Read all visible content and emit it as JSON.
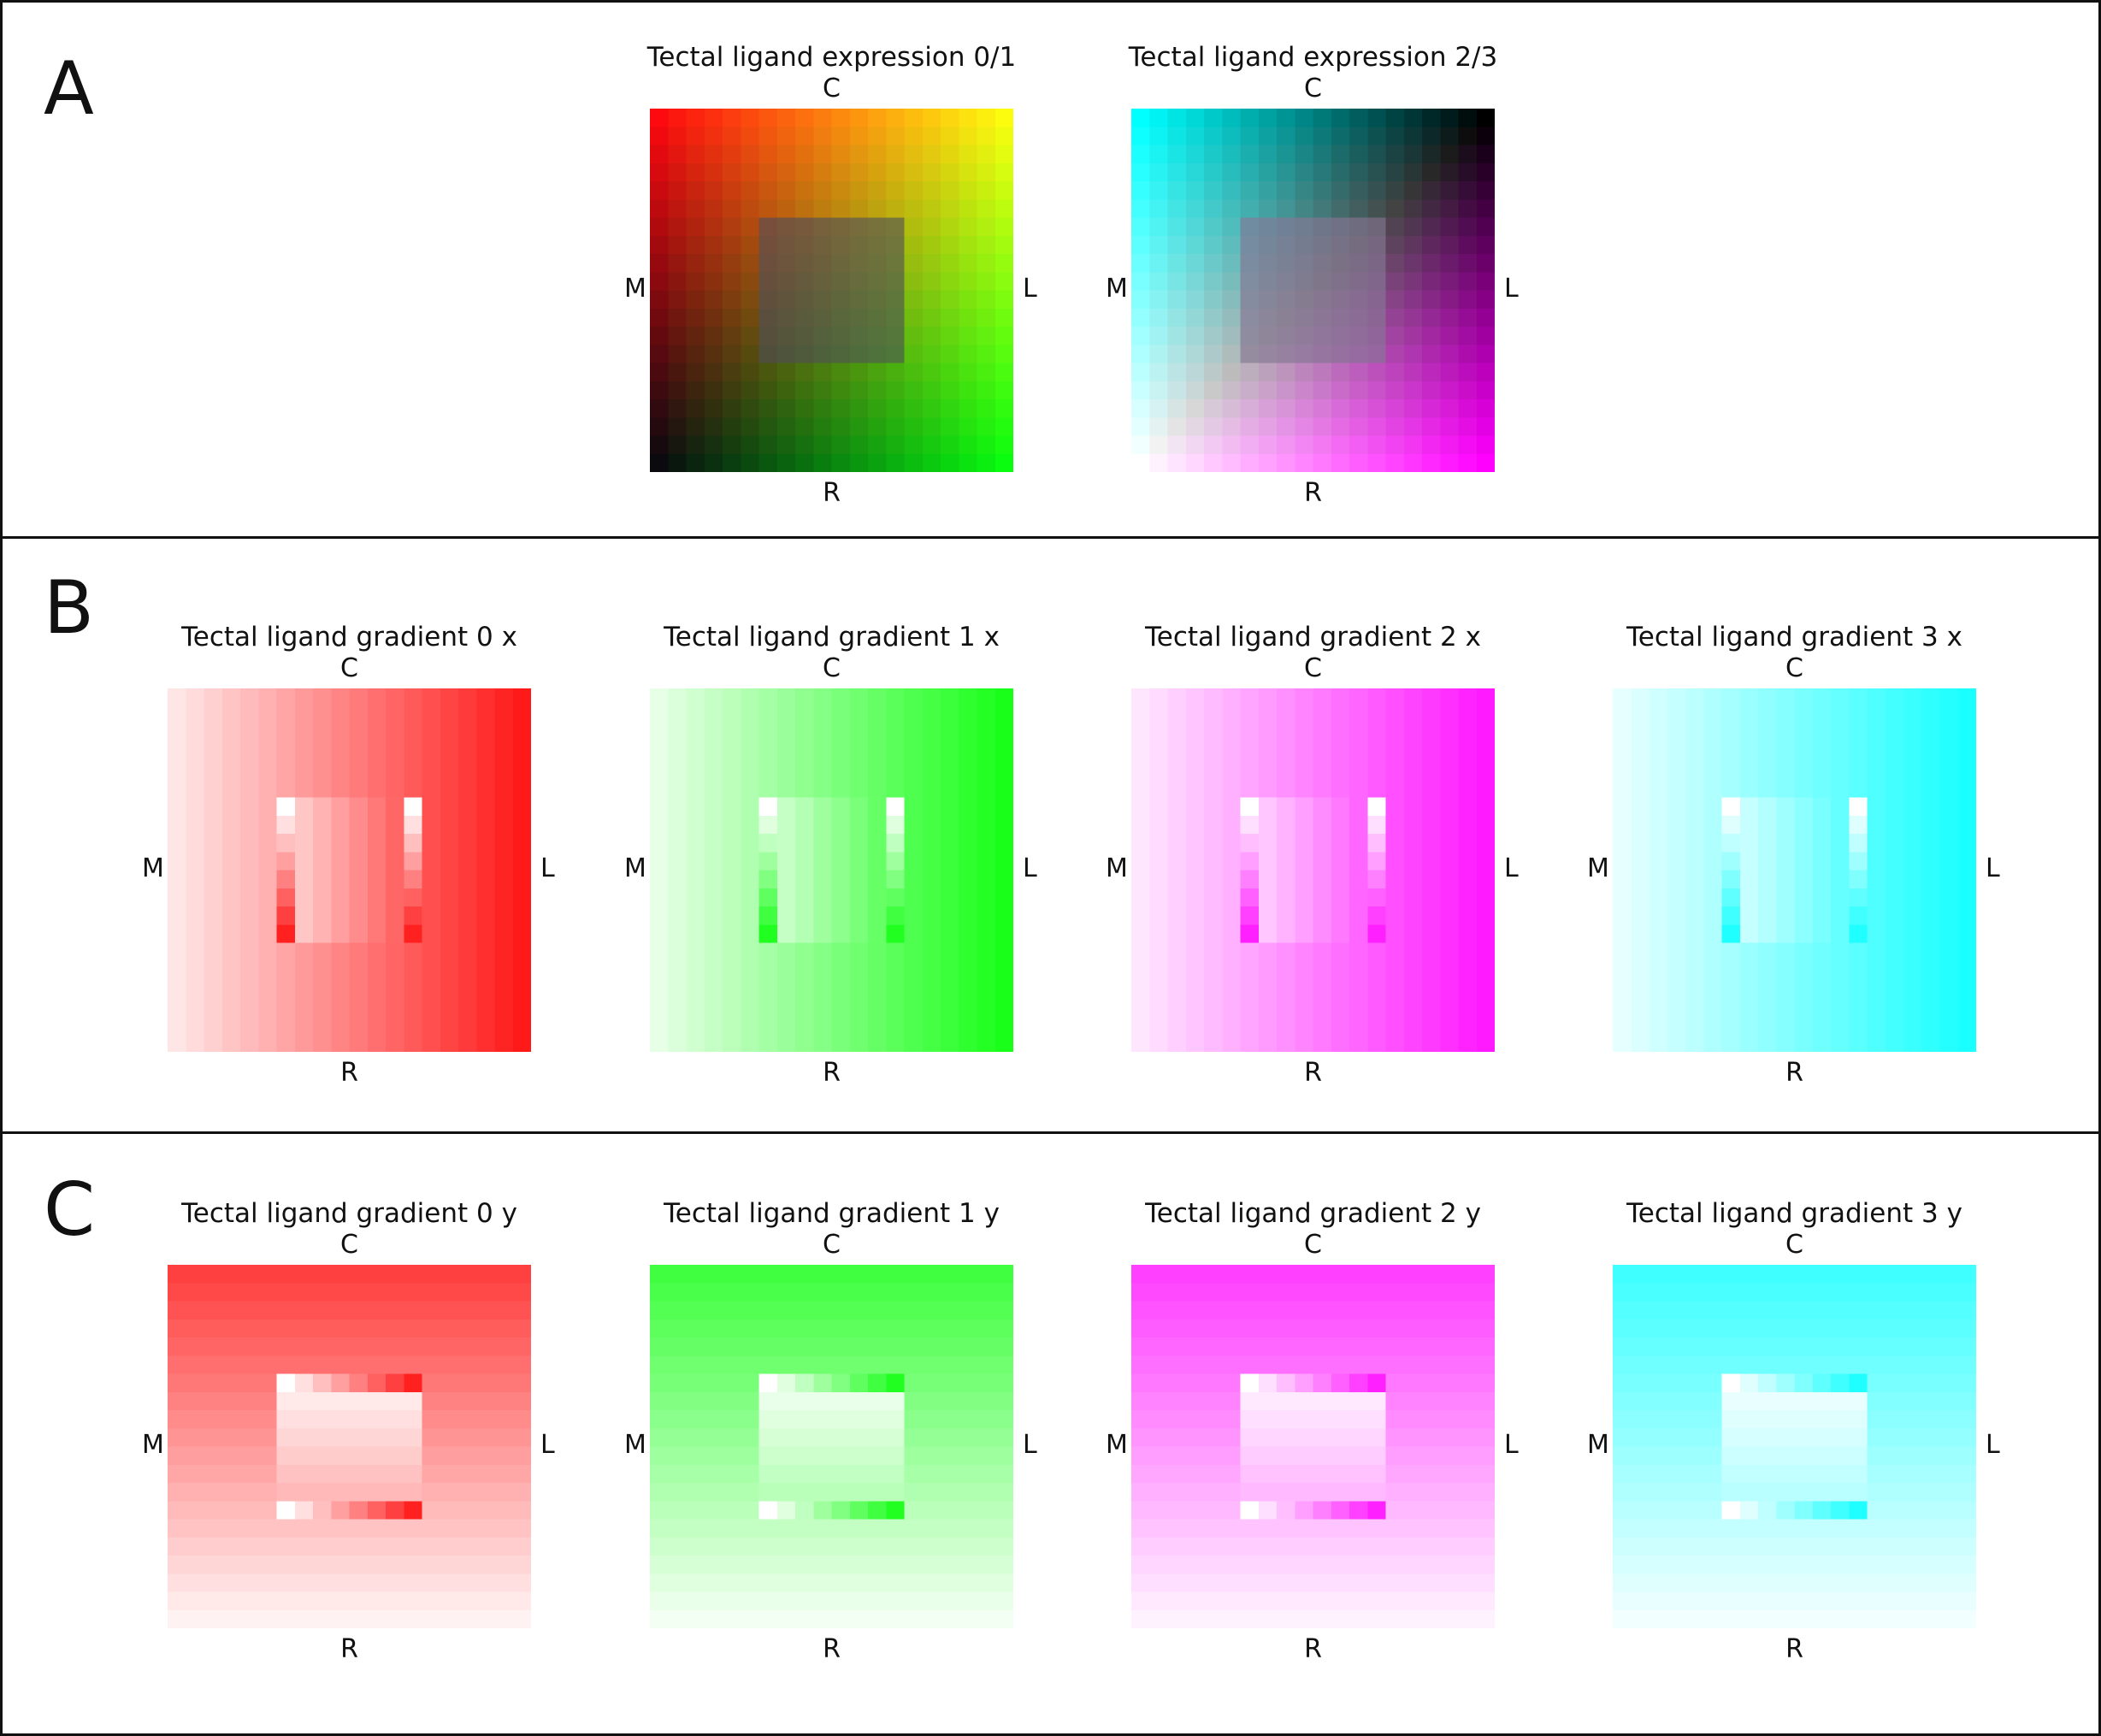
{
  "panels": [
    {
      "letter": "A",
      "figures": [
        {
          "title": "Tectal ligand expression 0/1",
          "mode": "expr01"
        },
        {
          "title": "Tectal ligand expression 2/3",
          "mode": "expr23"
        }
      ]
    },
    {
      "letter": "B",
      "figures": [
        {
          "title": "Tectal ligand gradient 0 x",
          "mode": "gx",
          "color": "#ff0000"
        },
        {
          "title": "Tectal ligand gradient 1 x",
          "mode": "gx",
          "color": "#00ff00"
        },
        {
          "title": "Tectal ligand gradient 2 x",
          "mode": "gx",
          "color": "#ff00ff"
        },
        {
          "title": "Tectal ligand gradient 3 x",
          "mode": "gx",
          "color": "#00ffff"
        }
      ]
    },
    {
      "letter": "C",
      "figures": [
        {
          "title": "Tectal ligand gradient 0 y",
          "mode": "gy",
          "color": "#ff0000"
        },
        {
          "title": "Tectal ligand gradient 1 y",
          "mode": "gy",
          "color": "#00ff00"
        },
        {
          "title": "Tectal ligand gradient 2 y",
          "mode": "gy",
          "color": "#ff00ff"
        },
        {
          "title": "Tectal ligand gradient 3 y",
          "mode": "gy",
          "color": "#00ffff"
        }
      ]
    }
  ],
  "axis_labels": {
    "top": "C",
    "bottom": "R",
    "left": "M",
    "right": "L"
  },
  "grid_size": 20,
  "inner_square": [
    6,
    6,
    14,
    14
  ]
}
